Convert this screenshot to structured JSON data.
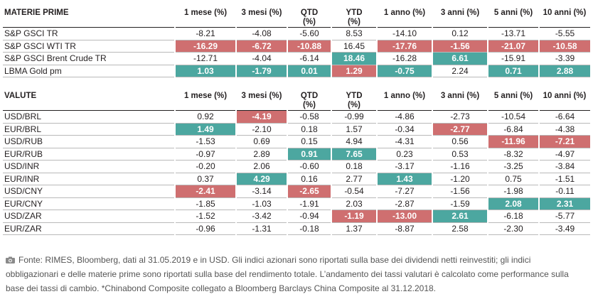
{
  "materie": {
    "title": "MATERIE PRIME",
    "columns": [
      "1 mese (%)",
      "3 mesi (%)",
      "QTD\n(%)",
      "YTD\n(%)",
      "1 anno (%)",
      "3 anni (%)",
      "5 anni (%)",
      "10 anni (%)"
    ],
    "rows": [
      {
        "label": "S&P GSCI TR",
        "values": [
          "-8.21",
          "-4.08",
          "-5.60",
          "8.53",
          "-14.10",
          "0.12",
          "-13.71",
          "-5.55"
        ],
        "hl": [
          "",
          "",
          "",
          "",
          "",
          "",
          "",
          ""
        ]
      },
      {
        "label": "S&P GSCI WTI TR",
        "values": [
          "-16.29",
          "-6.72",
          "-10.88",
          "16.45",
          "-17.76",
          "-1.56",
          "-21.07",
          "-10.58"
        ],
        "hl": [
          "red",
          "red",
          "red",
          "",
          "red",
          "red",
          "red",
          "red"
        ]
      },
      {
        "label": "S&P GSCI Brent Crude TR",
        "values": [
          "-12.71",
          "-4.04",
          "-6.14",
          "18.46",
          "-16.28",
          "6.61",
          "-15.91",
          "-3.39"
        ],
        "hl": [
          "",
          "",
          "",
          "green",
          "",
          "green",
          "",
          ""
        ]
      },
      {
        "label": "LBMA Gold pm",
        "values": [
          "1.03",
          "-1.79",
          "0.01",
          "1.29",
          "-0.75",
          "2.24",
          "0.71",
          "2.88"
        ],
        "hl": [
          "green",
          "green",
          "green",
          "red",
          "green",
          "",
          "green",
          "green"
        ]
      }
    ]
  },
  "valute": {
    "title": "VALUTE",
    "columns": [
      "1 mese (%)",
      "3 mesi (%)",
      "QTD\n(%)",
      "YTD\n(%)",
      "1 anno (%)",
      "3 anni (%)",
      "5 anni (%)",
      "10 anni (%)"
    ],
    "rows": [
      {
        "label": "USD/BRL",
        "values": [
          "0.92",
          "-4.19",
          "-0.58",
          "-0.99",
          "-4.86",
          "-2.73",
          "-10.54",
          "-6.64"
        ],
        "hl": [
          "",
          "red",
          "",
          "",
          "",
          "",
          "",
          ""
        ]
      },
      {
        "label": "EUR/BRL",
        "values": [
          "1.49",
          "-2.10",
          "0.18",
          "1.57",
          "-0.34",
          "-2.77",
          "-6.84",
          "-4.38"
        ],
        "hl": [
          "green",
          "",
          "",
          "",
          "",
          "red",
          "",
          ""
        ]
      },
      {
        "label": "USD/RUB",
        "values": [
          "-1.53",
          "0.69",
          "0.15",
          "4.94",
          "-4.31",
          "0.56",
          "-11.96",
          "-7.21"
        ],
        "hl": [
          "",
          "",
          "",
          "",
          "",
          "",
          "red",
          "red"
        ]
      },
      {
        "label": "EUR/RUB",
        "values": [
          "-0.97",
          "2.89",
          "0.91",
          "7.65",
          "0.23",
          "0.53",
          "-8.32",
          "-4.97"
        ],
        "hl": [
          "",
          "",
          "green",
          "green",
          "",
          "",
          "",
          ""
        ]
      },
      {
        "label": "USD/INR",
        "values": [
          "-0.20",
          "2.06",
          "-0.60",
          "0.18",
          "-3.17",
          "-1.16",
          "-3.25",
          "-3.84"
        ],
        "hl": [
          "",
          "",
          "",
          "",
          "",
          "",
          "",
          ""
        ]
      },
      {
        "label": "EUR/INR",
        "values": [
          "0.37",
          "4.29",
          "0.16",
          "2.77",
          "1.43",
          "-1.20",
          "0.75",
          "-1.51"
        ],
        "hl": [
          "",
          "green",
          "",
          "",
          "green",
          "",
          "",
          ""
        ]
      },
      {
        "label": "USD/CNY",
        "values": [
          "-2.41",
          "-3.14",
          "-2.65",
          "-0.54",
          "-7.27",
          "-1.56",
          "-1.98",
          "-0.11"
        ],
        "hl": [
          "red",
          "",
          "red",
          "",
          "",
          "",
          "",
          ""
        ]
      },
      {
        "label": "EUR/CNY",
        "values": [
          "-1.85",
          "-1.03",
          "-1.91",
          "2.03",
          "-2.87",
          "-1.59",
          "2.08",
          "2.31"
        ],
        "hl": [
          "",
          "",
          "",
          "",
          "",
          "",
          "green",
          "green"
        ]
      },
      {
        "label": "USD/ZAR",
        "values": [
          "-1.52",
          "-3.42",
          "-0.94",
          "-1.19",
          "-13.00",
          "2.61",
          "-6.18",
          "-5.77"
        ],
        "hl": [
          "",
          "",
          "",
          "red",
          "red",
          "green",
          "",
          ""
        ]
      },
      {
        "label": "EUR/ZAR",
        "values": [
          "-0.96",
          "-1.31",
          "-0.18",
          "1.37",
          "-8.87",
          "2.58",
          "-2.30",
          "-3.49"
        ],
        "hl": [
          "",
          "",
          "",
          "",
          "",
          "",
          "",
          ""
        ]
      }
    ]
  },
  "source": {
    "icon": "camera-icon",
    "text": "Fonte: RIMES, Bloomberg, dati al 31.05.2019 e in USD. Gli indici azionari sono riportati sulla base dei dividendi netti reinvestiti; gli indici obbligazionari e delle materie prime sono riportati sulla base del rendimento totale. L’andamento dei tassi valutari è calcolato come performance sulla base dei tassi di cambio. *Chinabond Composite collegato a Bloomberg Barclays China Composite al 31.12.2018."
  }
}
